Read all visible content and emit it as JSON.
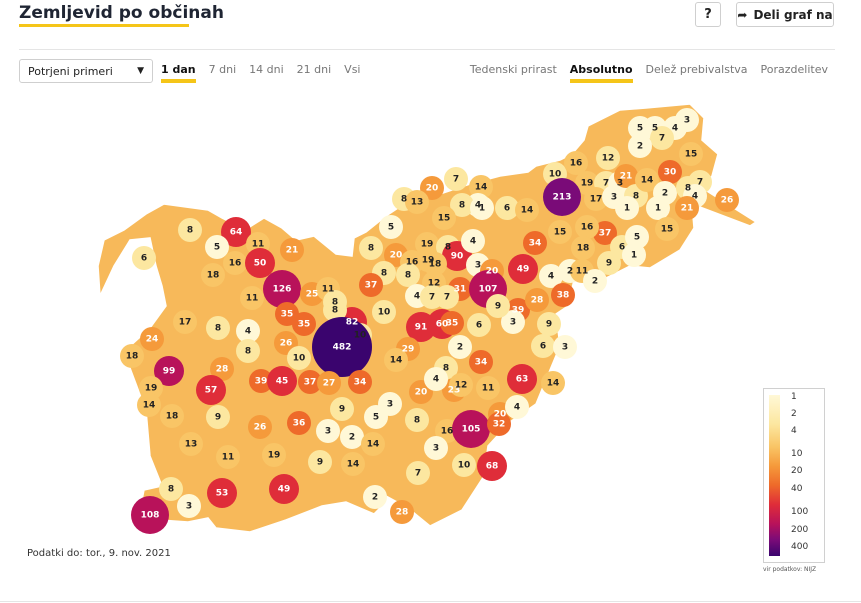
{
  "header": {
    "title": "Zemljevid po občinah",
    "help_label": "?",
    "share_label": "Deli graf na"
  },
  "controls": {
    "select_value": "Potrjeni primeri",
    "time_tabs": [
      "1 dan",
      "7 dni",
      "14 dni",
      "21 dni",
      "Vsi"
    ],
    "time_active": 0,
    "mode_tabs": [
      "Tedenski prirast",
      "Absolutno",
      "Delež prebivalstva",
      "Porazdelitev"
    ],
    "mode_active": 1
  },
  "legend": {
    "labels": [
      "1",
      "2",
      "4",
      "10",
      "20",
      "40",
      "100",
      "200",
      "400"
    ],
    "source": "vir podatkov: NIJZ"
  },
  "footer": {
    "data_date": "Podatki do: tor., 9. nov. 2021"
  },
  "municipality_values": [
    {
      "v": "5",
      "c": "#fff8d7"
    },
    {
      "v": "5",
      "c": "#fff8d7"
    },
    {
      "v": "4",
      "c": "#fff8d7"
    },
    {
      "v": "3",
      "c": "#fff8d7"
    },
    {
      "v": "7",
      "c": "#fce7a0"
    },
    {
      "v": "2",
      "c": "#fff8d7"
    },
    {
      "v": "15",
      "c": "#f9c566"
    },
    {
      "v": "10",
      "c": "#fce7a0"
    },
    {
      "v": "16",
      "c": "#f9c566"
    },
    {
      "v": "12",
      "c": "#fce7a0"
    },
    {
      "v": "30",
      "c": "#ee6a2a"
    },
    {
      "v": "19",
      "c": "#f9c566"
    },
    {
      "v": "7",
      "c": "#fce7a0"
    },
    {
      "v": "3",
      "c": "#fff8d7"
    },
    {
      "v": "21",
      "c": "#f59a3b"
    },
    {
      "v": "213",
      "c": "#7a0b78"
    },
    {
      "v": "17",
      "c": "#f9c566"
    },
    {
      "v": "3",
      "c": "#fff8d7"
    },
    {
      "v": "8",
      "c": "#fce7a0"
    },
    {
      "v": "14",
      "c": "#f9c566"
    },
    {
      "v": "2",
      "c": "#fff8d7"
    },
    {
      "v": "8",
      "c": "#fce7a0"
    },
    {
      "v": "7",
      "c": "#fce7a0"
    },
    {
      "v": "4",
      "c": "#fff8d7"
    },
    {
      "v": "21",
      "c": "#f59a3b"
    },
    {
      "v": "26",
      "c": "#f59a3b"
    },
    {
      "v": "20",
      "c": "#f59a3b"
    },
    {
      "v": "7",
      "c": "#fce7a0"
    },
    {
      "v": "14",
      "c": "#f9c566"
    },
    {
      "v": "4",
      "c": "#fff8d7"
    },
    {
      "v": "8",
      "c": "#fce7a0"
    },
    {
      "v": "13",
      "c": "#f9c566"
    },
    {
      "v": "8",
      "c": "#fce7a0"
    },
    {
      "v": "1",
      "c": "#fff8d7"
    },
    {
      "v": "6",
      "c": "#fce7a0"
    },
    {
      "v": "14",
      "c": "#f9c566"
    },
    {
      "v": "15",
      "c": "#f9c566"
    },
    {
      "v": "15",
      "c": "#f9c566"
    },
    {
      "v": "1",
      "c": "#fff8d7"
    },
    {
      "v": "1",
      "c": "#fff8d7"
    },
    {
      "v": "15",
      "c": "#f9c566"
    },
    {
      "v": "37",
      "c": "#ee6a2a"
    },
    {
      "v": "16",
      "c": "#f9c566"
    },
    {
      "v": "6",
      "c": "#fce7a0"
    },
    {
      "v": "5",
      "c": "#fff8d7"
    },
    {
      "v": "18",
      "c": "#f9c566"
    },
    {
      "v": "8",
      "c": "#fce7a0"
    },
    {
      "v": "64",
      "c": "#df2d39"
    },
    {
      "v": "5",
      "c": "#fff8d7"
    },
    {
      "v": "11",
      "c": "#f9c566"
    },
    {
      "v": "21",
      "c": "#f59a3b"
    },
    {
      "v": "6",
      "c": "#fce7a0"
    },
    {
      "v": "16",
      "c": "#f9c566"
    },
    {
      "v": "50",
      "c": "#df2d39"
    },
    {
      "v": "18",
      "c": "#f9c566"
    },
    {
      "v": "5",
      "c": "#fff8d7"
    },
    {
      "v": "8",
      "c": "#fce7a0"
    },
    {
      "v": "20",
      "c": "#f59a3b"
    },
    {
      "v": "19",
      "c": "#f9c566"
    },
    {
      "v": "8",
      "c": "#fce7a0"
    },
    {
      "v": "90",
      "c": "#df2d39"
    },
    {
      "v": "8",
      "c": "#fce7a0"
    },
    {
      "v": "19",
      "c": "#f9c566"
    },
    {
      "v": "4",
      "c": "#fff8d7"
    },
    {
      "v": "34",
      "c": "#ee6a2a"
    },
    {
      "v": "16",
      "c": "#f9c566"
    },
    {
      "v": "18",
      "c": "#f9c566"
    },
    {
      "v": "3",
      "c": "#fff8d7"
    },
    {
      "v": "20",
      "c": "#f59a3b"
    },
    {
      "v": "49",
      "c": "#df2d39"
    },
    {
      "v": "4",
      "c": "#fff8d7"
    },
    {
      "v": "2",
      "c": "#fff8d7"
    },
    {
      "v": "11",
      "c": "#f9c566"
    },
    {
      "v": "9",
      "c": "#fce7a0"
    },
    {
      "v": "1",
      "c": "#fff8d7"
    },
    {
      "v": "2",
      "c": "#fff8d7"
    },
    {
      "v": "126",
      "c": "#b8125a"
    },
    {
      "v": "25",
      "c": "#f59a3b"
    },
    {
      "v": "11",
      "c": "#f9c566"
    },
    {
      "v": "37",
      "c": "#ee6a2a"
    },
    {
      "v": "8",
      "c": "#fce7a0"
    },
    {
      "v": "12",
      "c": "#f9c566"
    },
    {
      "v": "31",
      "c": "#ee6a2a"
    },
    {
      "v": "107",
      "c": "#b8125a"
    },
    {
      "v": "39",
      "c": "#ee6a2a"
    },
    {
      "v": "28",
      "c": "#f59a3b"
    },
    {
      "v": "38",
      "c": "#ee6a2a"
    },
    {
      "v": "11",
      "c": "#f9c566"
    },
    {
      "v": "8",
      "c": "#fce7a0"
    },
    {
      "v": "4",
      "c": "#fff8d7"
    },
    {
      "v": "7",
      "c": "#fce7a0"
    },
    {
      "v": "7",
      "c": "#fce7a0"
    },
    {
      "v": "10",
      "c": "#fce7a0"
    },
    {
      "v": "17",
      "c": "#f9c566"
    },
    {
      "v": "8",
      "c": "#fce7a0"
    },
    {
      "v": "4",
      "c": "#fff8d7"
    },
    {
      "v": "35",
      "c": "#ee6a2a"
    },
    {
      "v": "35",
      "c": "#ee6a2a"
    },
    {
      "v": "82",
      "c": "#df2d39"
    },
    {
      "v": "8",
      "c": "#fce7a0"
    },
    {
      "v": "10",
      "c": "#fce7a0"
    },
    {
      "v": "91",
      "c": "#df2d39"
    },
    {
      "v": "60",
      "c": "#df2d39"
    },
    {
      "v": "35",
      "c": "#ee6a2a"
    },
    {
      "v": "6",
      "c": "#fce7a0"
    },
    {
      "v": "3",
      "c": "#fff8d7"
    },
    {
      "v": "9",
      "c": "#fce7a0"
    },
    {
      "v": "9",
      "c": "#fce7a0"
    },
    {
      "v": "24",
      "c": "#f59a3b"
    },
    {
      "v": "8",
      "c": "#fce7a0"
    },
    {
      "v": "26",
      "c": "#f59a3b"
    },
    {
      "v": "482",
      "c": "#3a046e"
    },
    {
      "v": "29",
      "c": "#f59a3b"
    },
    {
      "v": "2",
      "c": "#fff8d7"
    },
    {
      "v": "6",
      "c": "#fce7a0"
    },
    {
      "v": "3",
      "c": "#fff8d7"
    },
    {
      "v": "18",
      "c": "#f9c566"
    },
    {
      "v": "99",
      "c": "#b8125a"
    },
    {
      "v": "28",
      "c": "#f59a3b"
    },
    {
      "v": "10",
      "c": "#fce7a0"
    },
    {
      "v": "14",
      "c": "#f9c566"
    },
    {
      "v": "34",
      "c": "#ee6a2a"
    },
    {
      "v": "63",
      "c": "#df2d39"
    },
    {
      "v": "19",
      "c": "#f9c566"
    },
    {
      "v": "57",
      "c": "#df2d39"
    },
    {
      "v": "39",
      "c": "#ee6a2a"
    },
    {
      "v": "45",
      "c": "#df2d39"
    },
    {
      "v": "37",
      "c": "#ee6a2a"
    },
    {
      "v": "27",
      "c": "#f59a3b"
    },
    {
      "v": "34",
      "c": "#ee6a2a"
    },
    {
      "v": "8",
      "c": "#fce7a0"
    },
    {
      "v": "20",
      "c": "#f59a3b"
    },
    {
      "v": "23",
      "c": "#f59a3b"
    },
    {
      "v": "4",
      "c": "#fff8d7"
    },
    {
      "v": "12",
      "c": "#f9c566"
    },
    {
      "v": "11",
      "c": "#f9c566"
    },
    {
      "v": "14",
      "c": "#f9c566"
    },
    {
      "v": "14",
      "c": "#f9c566"
    },
    {
      "v": "18",
      "c": "#f9c566"
    },
    {
      "v": "9",
      "c": "#fce7a0"
    },
    {
      "v": "9",
      "c": "#fce7a0"
    },
    {
      "v": "5",
      "c": "#fff8d7"
    },
    {
      "v": "8",
      "c": "#fce7a0"
    },
    {
      "v": "3",
      "c": "#fff8d7"
    },
    {
      "v": "20",
      "c": "#f59a3b"
    },
    {
      "v": "4",
      "c": "#fff8d7"
    },
    {
      "v": "26",
      "c": "#f59a3b"
    },
    {
      "v": "36",
      "c": "#ee6a2a"
    },
    {
      "v": "3",
      "c": "#fff8d7"
    },
    {
      "v": "2",
      "c": "#fff8d7"
    },
    {
      "v": "14",
      "c": "#f9c566"
    },
    {
      "v": "16",
      "c": "#f9c566"
    },
    {
      "v": "105",
      "c": "#b8125a"
    },
    {
      "v": "32",
      "c": "#ee6a2a"
    },
    {
      "v": "13",
      "c": "#f9c566"
    },
    {
      "v": "11",
      "c": "#f9c566"
    },
    {
      "v": "19",
      "c": "#f9c566"
    },
    {
      "v": "3",
      "c": "#fff8d7"
    },
    {
      "v": "9",
      "c": "#fce7a0"
    },
    {
      "v": "14",
      "c": "#f9c566"
    },
    {
      "v": "10",
      "c": "#fce7a0"
    },
    {
      "v": "68",
      "c": "#df2d39"
    },
    {
      "v": "7",
      "c": "#fce7a0"
    },
    {
      "v": "8",
      "c": "#fce7a0"
    },
    {
      "v": "53",
      "c": "#df2d39"
    },
    {
      "v": "49",
      "c": "#df2d39"
    },
    {
      "v": "108",
      "c": "#b8125a"
    },
    {
      "v": "3",
      "c": "#fff8d7"
    },
    {
      "v": "2",
      "c": "#fff8d7"
    },
    {
      "v": "28",
      "c": "#f59a3b"
    }
  ]
}
